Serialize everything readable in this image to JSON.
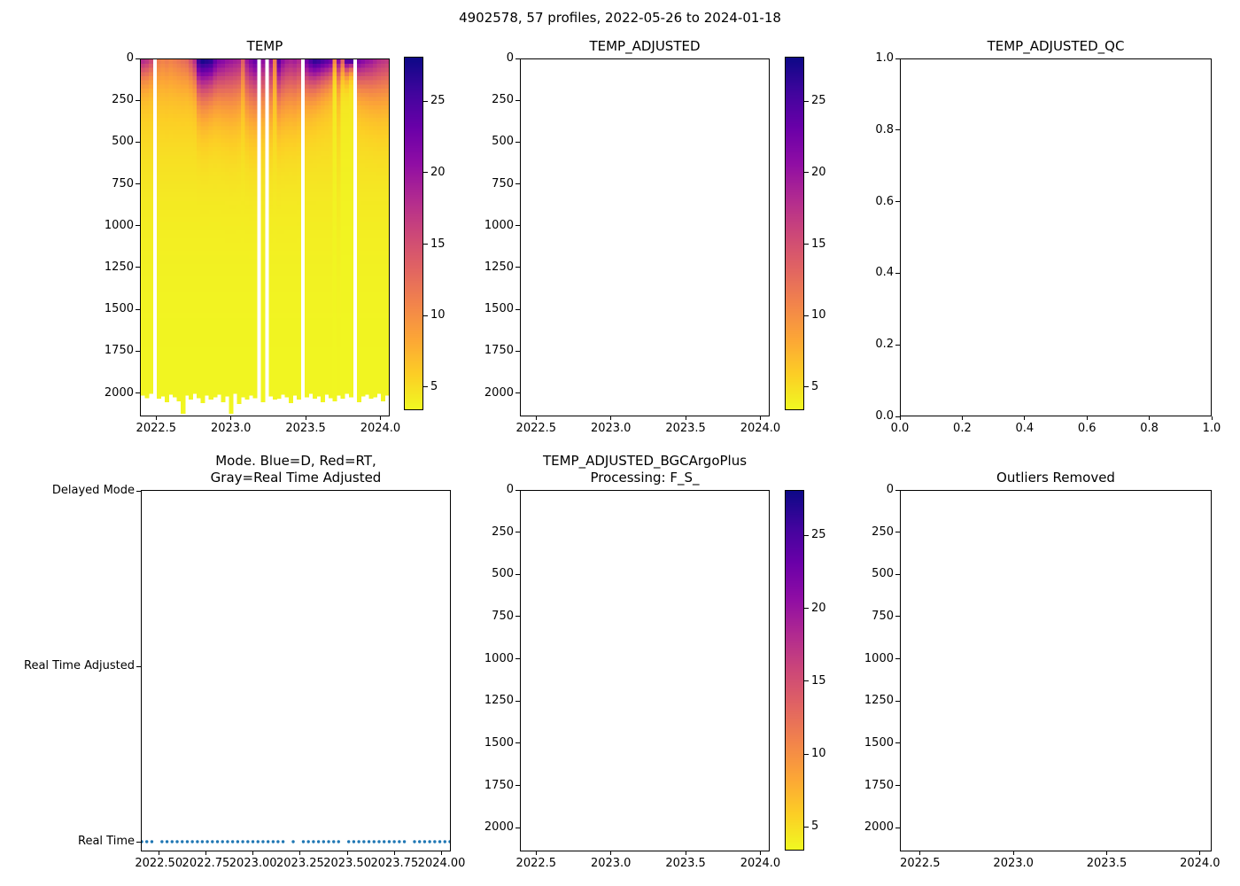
{
  "figure": {
    "suptitle": "4902578, 57 profiles, 2022-05-26 to 2024-01-18",
    "background": "#ffffff",
    "n_profiles": 57
  },
  "colors": {
    "spine": "#000000",
    "text": "#000000",
    "dot_color": "#1f77b4",
    "colormap_name": "plasma_r",
    "plasma_stops": [
      [
        0.0,
        "#0d0887"
      ],
      [
        0.1,
        "#41049d"
      ],
      [
        0.2,
        "#6a00a8"
      ],
      [
        0.3,
        "#8f0da4"
      ],
      [
        0.4,
        "#b12a90"
      ],
      [
        0.5,
        "#cc4778"
      ],
      [
        0.6,
        "#e16462"
      ],
      [
        0.7,
        "#f2844b"
      ],
      [
        0.8,
        "#fca636"
      ],
      [
        0.9,
        "#fcce25"
      ],
      [
        1.0,
        "#f0f921"
      ]
    ]
  },
  "chart_data": [
    {
      "id": "temp",
      "type": "heatmap",
      "title": "TEMP",
      "xlim": [
        2022.3915,
        2024.0625
      ],
      "ylim": [
        0,
        2140
      ],
      "x_ticks": [
        2022.5,
        2023.0,
        2023.5,
        2024.0
      ],
      "x_tick_labels": [
        "2022.5",
        "2023.0",
        "2023.5",
        "2024.0"
      ],
      "y_ticks": [
        0,
        250,
        500,
        750,
        1000,
        1250,
        1500,
        1750,
        2000
      ],
      "y_tick_labels": [
        "0",
        "250",
        "500",
        "750",
        "1000",
        "1250",
        "1500",
        "1750",
        "2000"
      ],
      "colorbar": {
        "vmin": 3.45,
        "vmax": 28.05,
        "ticks": [
          25,
          20,
          15,
          10,
          5
        ],
        "tick_labels": [
          "25",
          "20",
          "15",
          "10",
          "5"
        ]
      },
      "cell_half_width_yr": 0.0135,
      "profile_model": {
        "deep_temp_c": 3.6,
        "deep_amp_default_c": 5.0,
        "deep_decay_scale_m": 450,
        "warm_exponent": 1.3,
        "depth_bin_m": 25
      },
      "profile_keys": [
        "time",
        "surface_temp_c",
        "warm_layer_scale_m",
        "max_depth_m",
        "deep_amp_c_optional"
      ],
      "profiles": [
        [
          2022.405,
          18.5,
          120,
          2020
        ],
        [
          2022.432,
          17.5,
          120,
          2035
        ],
        [
          2022.459,
          16.0,
          110,
          2010
        ],
        [
          2022.513,
          11.5,
          140,
          2040
        ],
        [
          2022.54,
          11.0,
          150,
          2025
        ],
        [
          2022.567,
          11.5,
          150,
          2060
        ],
        [
          2022.594,
          11.0,
          150,
          2015
        ],
        [
          2022.621,
          11.5,
          150,
          2030
        ],
        [
          2022.648,
          12.0,
          150,
          2055
        ],
        [
          2022.675,
          12.5,
          150,
          2130
        ],
        [
          2022.702,
          13.0,
          140,
          2020
        ],
        [
          2022.728,
          15.0,
          140,
          2045
        ],
        [
          2022.755,
          18.0,
          150,
          2010
        ],
        [
          2022.782,
          26.5,
          200,
          2035
        ],
        [
          2022.809,
          28.0,
          210,
          2065
        ],
        [
          2022.836,
          27.5,
          210,
          2020
        ],
        [
          2022.863,
          27.0,
          200,
          2045
        ],
        [
          2022.89,
          24.0,
          200,
          2030
        ],
        [
          2022.917,
          22.0,
          210,
          2015
        ],
        [
          2022.944,
          21.5,
          220,
          2060
        ],
        [
          2022.971,
          20.5,
          230,
          2025
        ],
        [
          2022.998,
          20.0,
          240,
          2130
        ],
        [
          2023.025,
          19.5,
          240,
          2010
        ],
        [
          2023.052,
          19.0,
          230,
          2070
        ],
        [
          2023.079,
          14.0,
          180,
          2030
        ],
        [
          2023.106,
          20.0,
          240,
          2045
        ],
        [
          2023.132,
          22.0,
          250,
          2020
        ],
        [
          2023.159,
          23.5,
          250,
          2035
        ],
        [
          2023.213,
          21.0,
          240,
          2060
        ],
        [
          2023.267,
          20.5,
          240,
          2025
        ],
        [
          2023.294,
          11.5,
          150,
          2045
        ],
        [
          2023.321,
          24.5,
          230,
          2040
        ],
        [
          2023.348,
          21.0,
          230,
          2015
        ],
        [
          2023.375,
          19.5,
          230,
          2030
        ],
        [
          2023.402,
          19.0,
          230,
          2065
        ],
        [
          2023.429,
          19.5,
          230,
          2020
        ],
        [
          2023.455,
          18.5,
          220,
          2045
        ],
        [
          2023.509,
          23.0,
          180,
          2030
        ],
        [
          2023.536,
          25.5,
          170,
          2010
        ],
        [
          2023.563,
          27.0,
          160,
          2040
        ],
        [
          2023.59,
          26.5,
          150,
          2025
        ],
        [
          2023.617,
          25.5,
          140,
          2060
        ],
        [
          2023.644,
          24.5,
          130,
          2015
        ],
        [
          2023.671,
          23.5,
          120,
          2035
        ],
        [
          2023.698,
          11.0,
          80,
          2055,
          1.5
        ],
        [
          2023.725,
          22.0,
          110,
          2020
        ],
        [
          2023.752,
          14.0,
          90,
          2040,
          1.5
        ],
        [
          2023.779,
          26.0,
          80,
          2010,
          1.5
        ],
        [
          2023.806,
          27.0,
          60,
          2030,
          1.5
        ],
        [
          2023.86,
          22.5,
          150,
          2060
        ],
        [
          2023.887,
          21.5,
          160,
          2025
        ],
        [
          2023.914,
          20.5,
          170,
          2015
        ],
        [
          2023.941,
          20.0,
          180,
          2040
        ],
        [
          2023.968,
          19.0,
          190,
          2030
        ],
        [
          2023.995,
          18.0,
          200,
          2010
        ],
        [
          2024.022,
          17.5,
          200,
          2055
        ],
        [
          2024.049,
          17.0,
          200,
          2020
        ]
      ],
      "missing_times": [
        2022.486,
        2023.186,
        2023.24,
        2023.482,
        2023.833
      ]
    },
    {
      "id": "temp_adjusted",
      "type": "heatmap",
      "empty": true,
      "title": "TEMP_ADJUSTED",
      "xlim": [
        2022.3915,
        2024.0625
      ],
      "ylim": [
        0,
        2140
      ],
      "x_ticks": [
        2022.5,
        2023.0,
        2023.5,
        2024.0
      ],
      "x_tick_labels": [
        "2022.5",
        "2023.0",
        "2023.5",
        "2024.0"
      ],
      "y_ticks": [
        0,
        250,
        500,
        750,
        1000,
        1250,
        1500,
        1750,
        2000
      ],
      "y_tick_labels": [
        "0",
        "250",
        "500",
        "750",
        "1000",
        "1250",
        "1500",
        "1750",
        "2000"
      ],
      "colorbar": {
        "vmin": 3.45,
        "vmax": 28.05,
        "ticks": [
          25,
          20,
          15,
          10,
          5
        ],
        "tick_labels": [
          "25",
          "20",
          "15",
          "10",
          "5"
        ]
      },
      "profiles": []
    },
    {
      "id": "temp_adjusted_qc",
      "type": "empty",
      "title": "TEMP_ADJUSTED_QC",
      "xlim": [
        0,
        1
      ],
      "ylim": [
        0,
        1
      ],
      "x_ticks": [
        0.0,
        0.2,
        0.4,
        0.6,
        0.8,
        1.0
      ],
      "x_tick_labels": [
        "0.0",
        "0.2",
        "0.4",
        "0.6",
        "0.8",
        "1.0"
      ],
      "y_ticks": [
        0.0,
        0.2,
        0.4,
        0.6,
        0.8,
        1.0
      ],
      "y_tick_labels": [
        "0.0",
        "0.2",
        "0.4",
        "0.6",
        "0.8",
        "1.0"
      ]
    },
    {
      "id": "mode",
      "type": "scatter",
      "title_lines": [
        "Mode. Blue=D, Red=RT,",
        "Gray=Real Time Adjusted"
      ],
      "xlim": [
        2022.405,
        2024.049
      ],
      "x_ticks": [
        2022.5,
        2022.75,
        2023.0,
        2023.25,
        2023.5,
        2023.75,
        2024.0
      ],
      "x_tick_labels": [
        "2022.50",
        "2022.75",
        "2023.00",
        "2023.25",
        "2023.50",
        "2023.75",
        "2024.00"
      ],
      "y_categories": [
        "Delayed Mode",
        "Real Time Adjusted",
        "Real Time"
      ],
      "points_value": "Real Time",
      "marker": "dot",
      "points_times": [
        2022.405,
        2022.432,
        2022.459,
        2022.513,
        2022.54,
        2022.567,
        2022.594,
        2022.621,
        2022.648,
        2022.675,
        2022.702,
        2022.728,
        2022.755,
        2022.782,
        2022.809,
        2022.836,
        2022.863,
        2022.89,
        2022.917,
        2022.944,
        2022.971,
        2022.998,
        2023.025,
        2023.052,
        2023.079,
        2023.106,
        2023.132,
        2023.159,
        2023.213,
        2023.267,
        2023.294,
        2023.321,
        2023.348,
        2023.375,
        2023.402,
        2023.429,
        2023.455,
        2023.509,
        2023.536,
        2023.563,
        2023.59,
        2023.617,
        2023.644,
        2023.671,
        2023.698,
        2023.725,
        2023.752,
        2023.779,
        2023.806,
        2023.86,
        2023.887,
        2023.914,
        2023.941,
        2023.968,
        2023.995,
        2024.022,
        2024.049
      ]
    },
    {
      "id": "temp_adjusted_bgc",
      "type": "heatmap",
      "empty": true,
      "title_lines": [
        "TEMP_ADJUSTED_BGCArgoPlus",
        "Processing: F_S_"
      ],
      "xlim": [
        2022.3915,
        2024.0625
      ],
      "ylim": [
        0,
        2140
      ],
      "x_ticks": [
        2022.5,
        2023.0,
        2023.5,
        2024.0
      ],
      "x_tick_labels": [
        "2022.5",
        "2023.0",
        "2023.5",
        "2024.0"
      ],
      "y_ticks": [
        0,
        250,
        500,
        750,
        1000,
        1250,
        1500,
        1750,
        2000
      ],
      "y_tick_labels": [
        "0",
        "250",
        "500",
        "750",
        "1000",
        "1250",
        "1500",
        "1750",
        "2000"
      ],
      "colorbar": {
        "vmin": 3.45,
        "vmax": 28.05,
        "ticks": [
          25,
          20,
          15,
          10,
          5
        ],
        "tick_labels": [
          "25",
          "20",
          "15",
          "10",
          "5"
        ]
      },
      "profiles": []
    },
    {
      "id": "outliers_removed",
      "type": "empty",
      "title": "Outliers Removed",
      "xlim": [
        2022.3915,
        2024.0625
      ],
      "ylim": [
        0,
        2140
      ],
      "x_ticks": [
        2022.5,
        2023.0,
        2023.5,
        2024.0
      ],
      "x_tick_labels": [
        "2022.5",
        "2023.0",
        "2023.5",
        "2024.0"
      ],
      "y_ticks": [
        0,
        250,
        500,
        750,
        1000,
        1250,
        1500,
        1750,
        2000
      ],
      "y_tick_labels": [
        "0",
        "250",
        "500",
        "750",
        "1000",
        "1250",
        "1500",
        "1750",
        "2000"
      ]
    }
  ]
}
